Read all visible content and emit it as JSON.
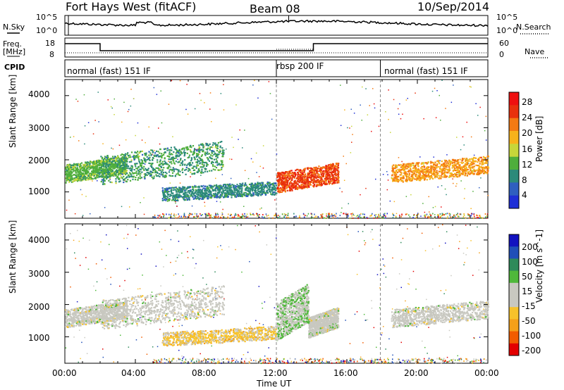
{
  "header": {
    "radar": "Fort Hays West (fitACF)",
    "beam": "Beam 08",
    "date": "10/Sep/2014"
  },
  "left_labels": {
    "nsky": "N.Sky",
    "freq_line1": "Freq.",
    "freq_line2": "[MHz]",
    "cpid": "CPID"
  },
  "right_labels": {
    "nsearch": "N.Search",
    "nave": "Nave"
  },
  "noise_panel": {
    "left_ticks": [
      "10^5",
      "10^0"
    ],
    "right_ticks": [
      "10^5",
      "10^0"
    ]
  },
  "freq_panel": {
    "left_ticks": [
      "18",
      "8"
    ],
    "right_ticks": [
      "60",
      "0"
    ]
  },
  "cpid_segments": [
    {
      "label": "normal (fast) 151 IF",
      "start_hour": 0
    },
    {
      "label": "rbsp 200 IF",
      "start_hour": 12.0
    },
    {
      "label": "normal (fast) 151 IF",
      "start_hour": 17.9
    }
  ],
  "colors": {
    "power_scale": [
      "#1f2fd6",
      "#2f5fc0",
      "#2c8a7a",
      "#4fae3c",
      "#c7d63a",
      "#f7b21b",
      "#f47a12",
      "#e8310d",
      "#ee1010"
    ],
    "velocity_scale": [
      "#e30000",
      "#f25c00",
      "#f5a01a",
      "#f7c22a",
      "#c8c8c0",
      "#c8c8c0",
      "#4fb83a",
      "#2e8a5a",
      "#1f4fb8",
      "#1212c0"
    ]
  },
  "chart_data": [
    {
      "type": "heatmap",
      "title": "Power",
      "xlabel": "Time UT",
      "ylabel": "Slant Range [km]",
      "x_ticks": [
        "00:00",
        "04:00",
        "08:00",
        "12:00",
        "16:00",
        "20:00",
        "00:00"
      ],
      "xlim_hours": [
        0,
        24
      ],
      "y_ticks": [
        "4000",
        "3000",
        "2000",
        "1000"
      ],
      "ylim_km": [
        180,
        4500
      ],
      "colorbar": {
        "label": "Power [dB]",
        "ticks": [
          "28",
          "24",
          "20",
          "16",
          "12",
          "8",
          "4"
        ],
        "range": [
          0,
          30
        ]
      },
      "echo_regions": [
        {
          "t_start": 0.0,
          "t_end": 3.5,
          "r_start": 1400,
          "r_end": 2200,
          "value": 12
        },
        {
          "t_start": 2.0,
          "t_end": 9.0,
          "r_start": 1400,
          "r_end": 2700,
          "value": 10
        },
        {
          "t_start": 5.5,
          "t_end": 12.0,
          "r_start": 800,
          "r_end": 1400,
          "value": 8
        },
        {
          "t_start": 12.0,
          "t_end": 15.5,
          "r_start": 1100,
          "r_end": 2000,
          "value": 24
        },
        {
          "t_start": 18.5,
          "t_end": 24.0,
          "r_start": 1400,
          "r_end": 2200,
          "value": 20
        }
      ]
    },
    {
      "type": "heatmap",
      "title": "Velocity",
      "xlabel": "Time UT",
      "ylabel": "Slant Range [km]",
      "x_ticks": [
        "00:00",
        "04:00",
        "08:00",
        "12:00",
        "16:00",
        "20:00",
        "00:00"
      ],
      "xlim_hours": [
        0,
        24
      ],
      "y_ticks": [
        "4000",
        "3000",
        "2000",
        "1000"
      ],
      "ylim_km": [
        180,
        4500
      ],
      "colorbar": {
        "label": "Velocity [m s^-1]",
        "ticks": [
          "200",
          "100",
          "50",
          "15",
          "-15",
          "-50",
          "-100",
          "-200"
        ],
        "range": [
          -250,
          250
        ]
      },
      "echo_regions": [
        {
          "t_start": 0.0,
          "t_end": 3.5,
          "r_start": 1400,
          "r_end": 2200,
          "value": 0
        },
        {
          "t_start": 2.0,
          "t_end": 9.0,
          "r_start": 1400,
          "r_end": 2700,
          "value": 0
        },
        {
          "t_start": 5.5,
          "t_end": 12.0,
          "r_start": 800,
          "r_end": 1400,
          "value": -60
        },
        {
          "t_start": 12.0,
          "t_end": 13.8,
          "r_start": 1100,
          "r_end": 2800,
          "value": 40
        },
        {
          "t_start": 13.8,
          "t_end": 15.5,
          "r_start": 1100,
          "r_end": 2000,
          "value": 0
        },
        {
          "t_start": 18.5,
          "t_end": 24.0,
          "r_start": 1400,
          "r_end": 2200,
          "value": 0
        }
      ]
    }
  ]
}
